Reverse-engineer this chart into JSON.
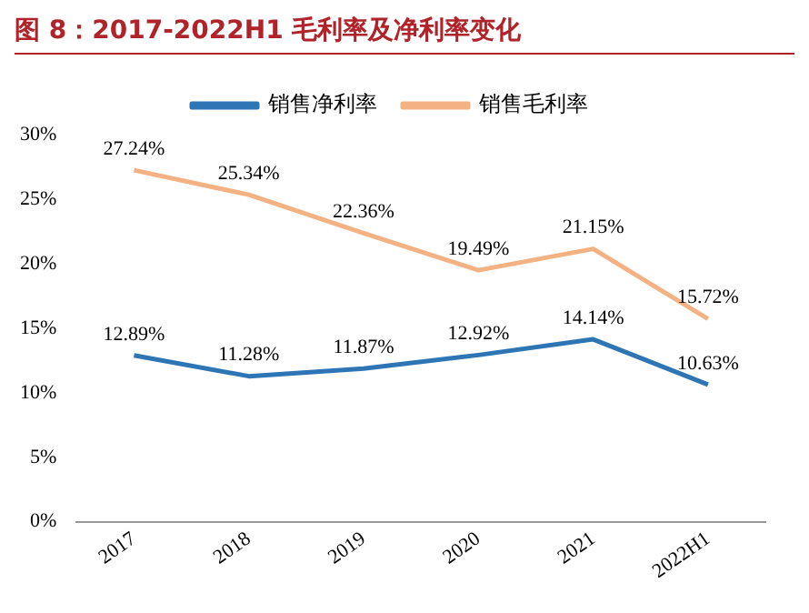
{
  "chart_data": {
    "type": "line",
    "title": "图 8：2017-2022H1 毛利率及净利率变化",
    "categories": [
      "2017",
      "2018",
      "2019",
      "2020",
      "2021",
      "2022H1"
    ],
    "series": [
      {
        "name": "销售净利率",
        "color": "#2e75b6",
        "values": [
          12.89,
          11.28,
          11.87,
          12.92,
          14.14,
          10.63
        ],
        "value_labels": [
          "12.89%",
          "11.28%",
          "11.87%",
          "12.92%",
          "14.14%",
          "10.63%"
        ]
      },
      {
        "name": "销售毛利率",
        "color": "#f4b183",
        "values": [
          27.24,
          25.34,
          22.36,
          19.49,
          21.15,
          15.72
        ],
        "value_labels": [
          "27.24%",
          "25.34%",
          "22.36%",
          "19.49%",
          "21.15%",
          "15.72%"
        ]
      }
    ],
    "ylim": [
      0,
      30
    ],
    "yticks": [
      {
        "value": 0,
        "label": "0%"
      },
      {
        "value": 5,
        "label": "5%"
      },
      {
        "value": 10,
        "label": "10%"
      },
      {
        "value": 15,
        "label": "15%"
      },
      {
        "value": 20,
        "label": "20%"
      },
      {
        "value": 25,
        "label": "25%"
      },
      {
        "value": 30,
        "label": "30%"
      }
    ],
    "grid": false,
    "legend": "top",
    "marker": "none",
    "line_style": "solid"
  }
}
